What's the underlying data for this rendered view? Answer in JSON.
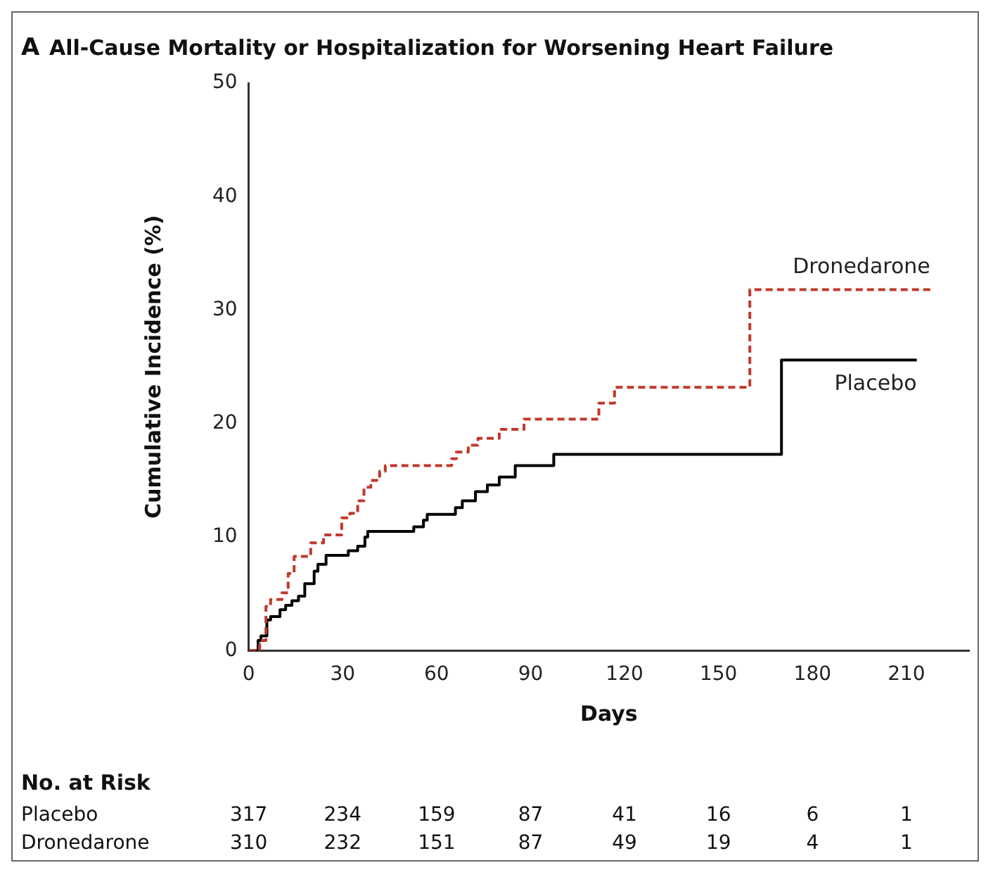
{
  "chart_data": {
    "type": "step",
    "title": "All-Cause Mortality or Hospitalization for Worsening Heart Failure",
    "xlabel": "Days",
    "ylabel": "Cumulative Incidence (%)",
    "xlim": [
      0,
      230
    ],
    "xticks": [
      0,
      30,
      60,
      90,
      120,
      150,
      180,
      210
    ],
    "ylim": [
      0,
      50
    ],
    "yticks": [
      0,
      10,
      20,
      30,
      40,
      50
    ],
    "grid": false,
    "legend": false,
    "marker": "none",
    "series": [
      {
        "name": "Dronedarone",
        "color": "#c0392b",
        "line_style": "dashed",
        "x": [
          0,
          3.5,
          5.5,
          7,
          10.6,
          12.6,
          14.5,
          19.8,
          23.9,
          29.7,
          32.3,
          34.8,
          36.8,
          39,
          41.8,
          43.6,
          64.8,
          66.3,
          70.1,
          73.2,
          80,
          87.9,
          111.8,
          116.8,
          160,
          217.6
        ],
        "values": [
          0,
          0.9,
          3.9,
          4.5,
          5.1,
          6.8,
          8.3,
          9.5,
          10.2,
          11.7,
          12.1,
          13.2,
          14.4,
          15.0,
          15.8,
          16.3,
          16.9,
          17.5,
          18.1,
          18.7,
          19.5,
          20.4,
          21.8,
          23.2,
          31.8,
          31.8
        ]
      },
      {
        "name": "Placebo",
        "color": "#000000",
        "line_style": "solid",
        "x": [
          0,
          3,
          3.9,
          5.8,
          7,
          10,
          11.8,
          13.8,
          15.9,
          17.9,
          20.9,
          22.1,
          24.7,
          31.8,
          34.8,
          37.1,
          38,
          52.7,
          55.8,
          57,
          66,
          68.2,
          72.4,
          76.2,
          80,
          85.1,
          97.4,
          170.1,
          213.3
        ],
        "values": [
          0,
          0.9,
          1.3,
          2.7,
          3.0,
          3.6,
          4.0,
          4.4,
          4.8,
          5.9,
          7.0,
          7.6,
          8.4,
          8.8,
          9.2,
          10.0,
          10.5,
          10.9,
          11.5,
          12.0,
          12.6,
          13.2,
          14.0,
          14.6,
          15.3,
          16.3,
          17.3,
          25.6,
          25.6
        ]
      }
    ],
    "annotations": [
      "A",
      "No. at Risk",
      "Placebo",
      "317",
      "234",
      "159",
      "87",
      "41",
      "16",
      "6",
      "1",
      "Dronedarone",
      "310",
      "232",
      "151",
      "87",
      "49",
      "19",
      "4",
      "1"
    ]
  }
}
